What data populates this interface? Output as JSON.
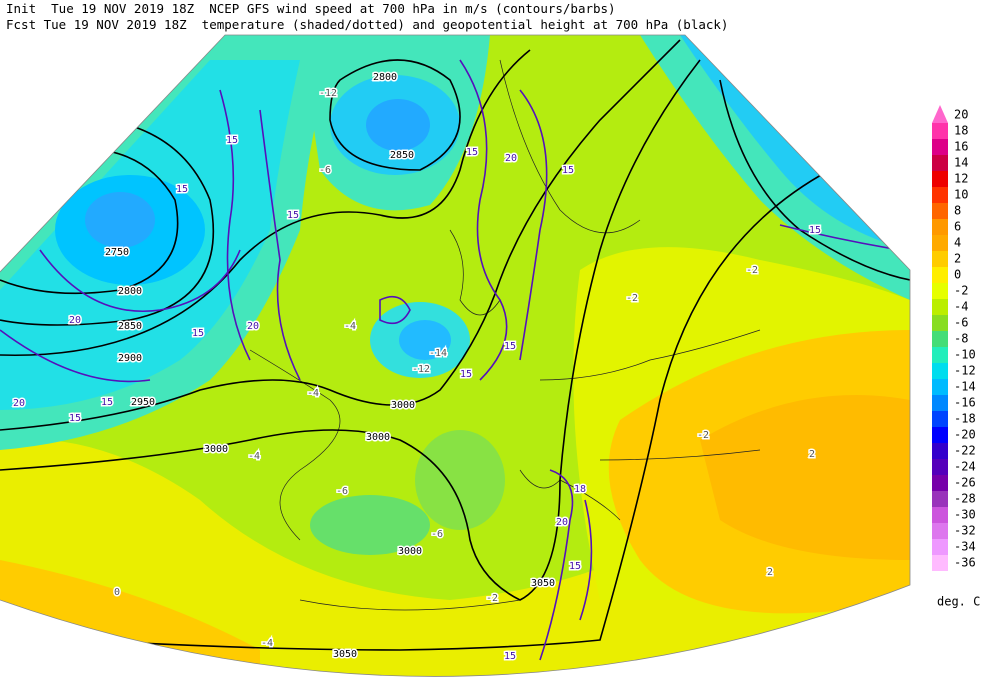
{
  "header": {
    "line1": "Init  Tue 19 NOV 2019 18Z  NCEP GFS wind speed at 700 hPa in m/s (contours/barbs)",
    "line2": "Fcst Tue 19 NOV 2019 18Z  temperature (shaded/dotted) and geopotential height at 700 hPa (black)"
  },
  "map_labels": {
    "height": [
      "2800",
      "2850",
      "2750",
      "2800",
      "2850",
      "2900",
      "2950",
      "3000",
      "3000",
      "3000",
      "3000",
      "3050",
      "3050"
    ],
    "wind": [
      "15",
      "15",
      "20",
      "15",
      "15",
      "15",
      "20",
      "20",
      "15",
      "15",
      "20",
      "15",
      "15",
      "15",
      "15",
      "18",
      "20",
      "15",
      "15"
    ],
    "temperature": [
      "-12",
      "-14",
      "-12",
      "-2",
      "-2",
      "-4",
      "-4",
      "-6",
      "-2",
      "-4",
      "-6",
      "-6",
      "-4",
      "2",
      "2",
      "0",
      "-2"
    ]
  },
  "legend": {
    "levels": [
      20,
      18,
      16,
      14,
      12,
      10,
      8,
      6,
      4,
      2,
      0,
      -2,
      -4,
      -6,
      -8,
      -10,
      -12,
      -14,
      -16,
      -18,
      -20,
      -22,
      -24,
      -26,
      -28,
      -30,
      -32,
      -34,
      -36
    ],
    "colors": [
      "#ff66cc",
      "#ff33aa",
      "#dd0088",
      "#cc0044",
      "#ee0000",
      "#ff3300",
      "#ff6600",
      "#ff9900",
      "#ffaa00",
      "#ffcc00",
      "#ffee00",
      "#e6ff00",
      "#bbee00",
      "#88dd22",
      "#44dd77",
      "#22eebb",
      "#00ddee",
      "#00bbff",
      "#0088ff",
      "#0044ff",
      "#0000ff",
      "#3300cc",
      "#5500bb",
      "#7700aa",
      "#9933bb",
      "#cc55dd",
      "#dd77ee",
      "#ee99ff",
      "#ffbbff"
    ],
    "unit": "deg. C"
  }
}
